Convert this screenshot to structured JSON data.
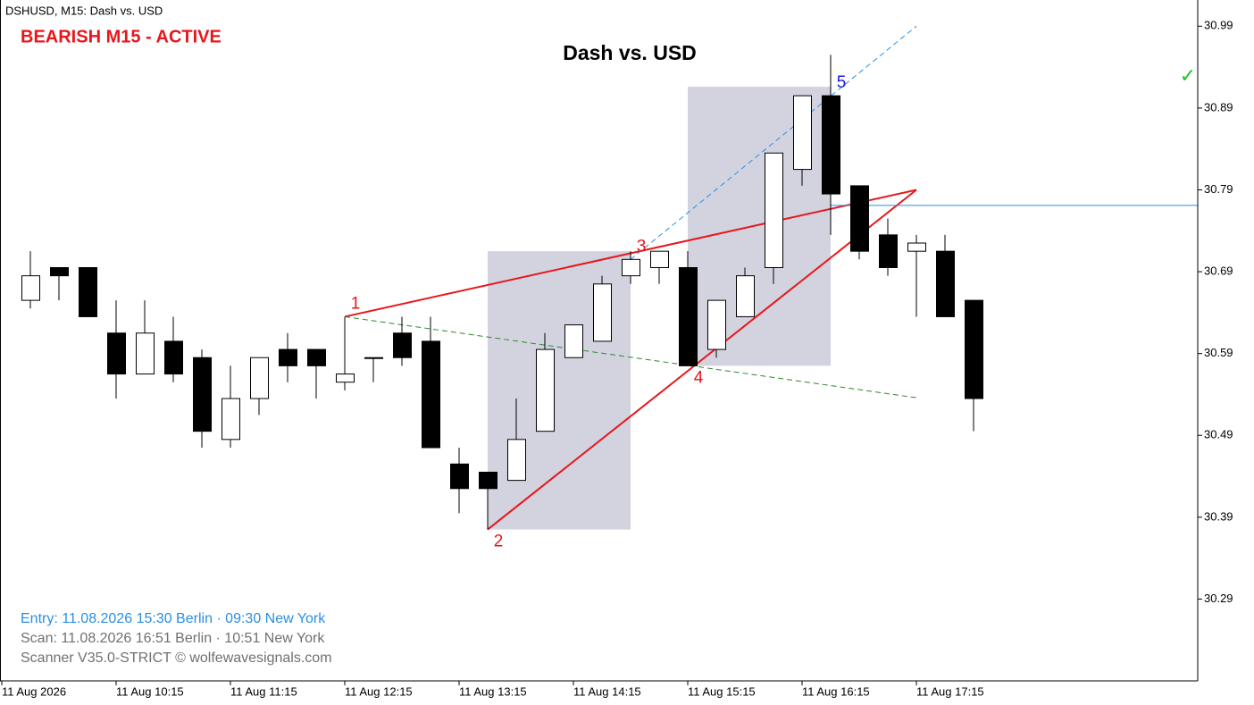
{
  "chart_data": {
    "type": "candlestick",
    "header": "DSHUSD, M15:  Dash vs. USD",
    "status": "BEARISH M15 - ACTIVE",
    "title": "Dash vs. USD",
    "check_mark": "✓",
    "footer": [
      "Entry: 11.08.2026  15:30 Berlin · 09:30 New York",
      "Scan:  11.08.2026  16:51 Berlin · 10:51 New York",
      "Scanner V35.0-STRICT   © wolfewavesignals.com"
    ],
    "categories": [
      "11 Aug 2026",
      null,
      null,
      null,
      "11 Aug 10:15",
      null,
      null,
      null,
      "11 Aug 11:15",
      null,
      null,
      null,
      "11 Aug 12:15",
      null,
      null,
      null,
      "11 Aug 13:15",
      null,
      null,
      null,
      "11 Aug 14:15",
      null,
      null,
      null,
      "11 Aug 15:15",
      null,
      null,
      null,
      "11 Aug 16:15",
      null,
      null,
      null,
      "11 Aug 17:15",
      null,
      null
    ],
    "open": [
      null,
      30.655,
      30.695,
      30.695,
      30.615,
      30.565,
      30.605,
      30.585,
      30.485,
      30.535,
      30.595,
      30.595,
      30.555,
      30.585,
      30.615,
      30.605,
      30.455,
      30.445,
      30.435,
      30.495,
      30.585,
      30.605,
      30.685,
      30.695,
      30.695,
      30.595,
      30.635,
      30.695,
      30.815,
      30.905,
      30.795,
      30.735,
      30.715,
      30.715,
      30.655
    ],
    "high": [
      null,
      30.715,
      30.695,
      30.695,
      30.655,
      30.655,
      30.635,
      30.595,
      30.575,
      30.585,
      30.615,
      30.595,
      30.635,
      30.585,
      30.635,
      30.635,
      30.475,
      30.445,
      30.535,
      30.615,
      30.625,
      30.685,
      30.715,
      30.715,
      30.715,
      30.655,
      30.695,
      30.835,
      30.905,
      30.955,
      30.795,
      30.755,
      30.735,
      30.735,
      30.655
    ],
    "low": [
      null,
      30.645,
      30.655,
      30.635,
      30.535,
      30.565,
      30.555,
      30.475,
      30.475,
      30.515,
      30.555,
      30.535,
      30.545,
      30.555,
      30.575,
      30.475,
      30.395,
      30.375,
      30.435,
      30.495,
      30.585,
      30.605,
      30.675,
      30.675,
      30.575,
      30.585,
      30.635,
      30.675,
      30.795,
      30.735,
      30.705,
      30.685,
      30.635,
      30.635,
      30.495
    ],
    "close": [
      null,
      30.685,
      30.685,
      30.635,
      30.565,
      30.615,
      30.565,
      30.495,
      30.535,
      30.585,
      30.575,
      30.575,
      30.565,
      30.585,
      30.585,
      30.475,
      30.425,
      30.425,
      30.485,
      30.595,
      30.625,
      30.675,
      30.705,
      30.715,
      30.575,
      30.655,
      30.685,
      30.835,
      30.905,
      30.785,
      30.715,
      30.695,
      30.725,
      30.635,
      30.535
    ],
    "ylim": [
      30.19,
      31.022
    ],
    "yticks": [
      30.29,
      30.39,
      30.49,
      30.59,
      30.69,
      30.79,
      30.89,
      30.99
    ],
    "boxes": [
      {
        "x": [
          17,
          22
        ],
        "y": [
          30.375,
          30.715
        ],
        "color": "#d3d3e0"
      },
      {
        "x": [
          24,
          29
        ],
        "y": [
          30.575,
          30.916
        ],
        "color": "#d3d3e0"
      }
    ],
    "lines": [
      {
        "x": [
          12,
          32
        ],
        "y": [
          30.635,
          30.79
        ],
        "color": "#e8161b",
        "dash": false
      },
      {
        "x": [
          17,
          32
        ],
        "y": [
          30.375,
          30.79
        ],
        "color": "#e8161b",
        "dash": false
      },
      {
        "x": [
          22,
          32
        ],
        "y": [
          30.705,
          30.99
        ],
        "color": "#2a8fe0",
        "dash": true
      },
      {
        "x": [
          12,
          32
        ],
        "y": [
          30.635,
          30.536
        ],
        "color": "#2a8a2a",
        "dash": true
      },
      {
        "x": [
          29,
          42
        ],
        "y": [
          30.771,
          30.771
        ],
        "color": "#2a8fe0",
        "dash": false
      }
    ],
    "points": [
      {
        "label": "1",
        "x": 12,
        "y": 30.635,
        "color": "#e8161b"
      },
      {
        "label": "2",
        "x": 17,
        "y": 30.375,
        "color": "#e8161b"
      },
      {
        "label": "3",
        "x": 22,
        "y": 30.705,
        "color": "#e8161b"
      },
      {
        "label": "4",
        "x": 24,
        "y": 30.575,
        "color": "#e8161b"
      },
      {
        "label": "5",
        "x": 29,
        "y": 30.905,
        "color": "#1a1ae0"
      }
    ]
  }
}
